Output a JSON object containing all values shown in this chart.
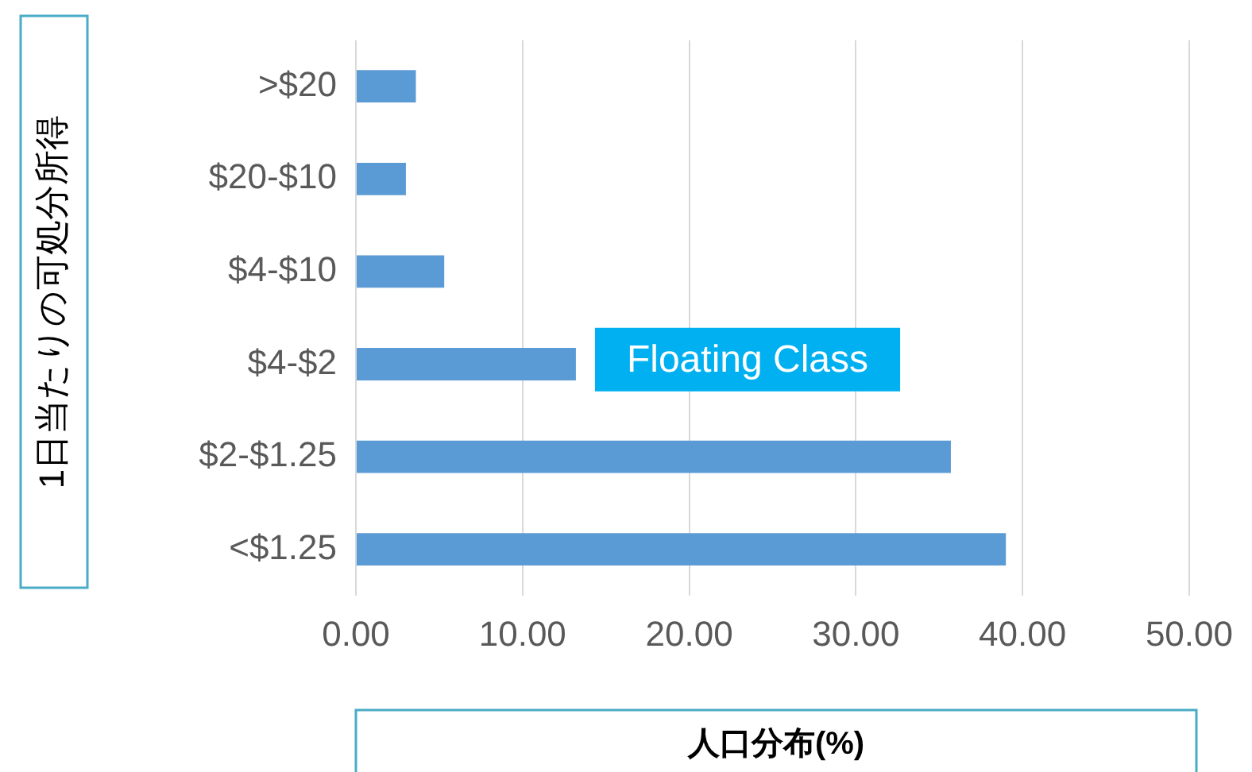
{
  "chart_data": {
    "type": "bar",
    "orientation": "horizontal",
    "xlabel": "人口分布(%)",
    "ylabel": "1日当たりの可処分所得",
    "categories": [
      ">$20",
      "$20-$10",
      "$4-$10",
      "$4-$2",
      "$2-$1.25",
      "<$1.25"
    ],
    "values": [
      3.6,
      3.0,
      5.3,
      13.2,
      35.7,
      39.0
    ],
    "color": "#5b9bd5",
    "xlim": [
      0,
      50
    ],
    "xticks": [
      {
        "value": 0,
        "label": "0.00"
      },
      {
        "value": 10,
        "label": "10.00"
      },
      {
        "value": 20,
        "label": "20.00"
      },
      {
        "value": 30,
        "label": "30.00"
      },
      {
        "value": 40,
        "label": "40.00"
      },
      {
        "value": 50,
        "label": "50.00"
      }
    ],
    "grid": "x",
    "legend": false,
    "annotations": [
      "Floating Class"
    ]
  }
}
